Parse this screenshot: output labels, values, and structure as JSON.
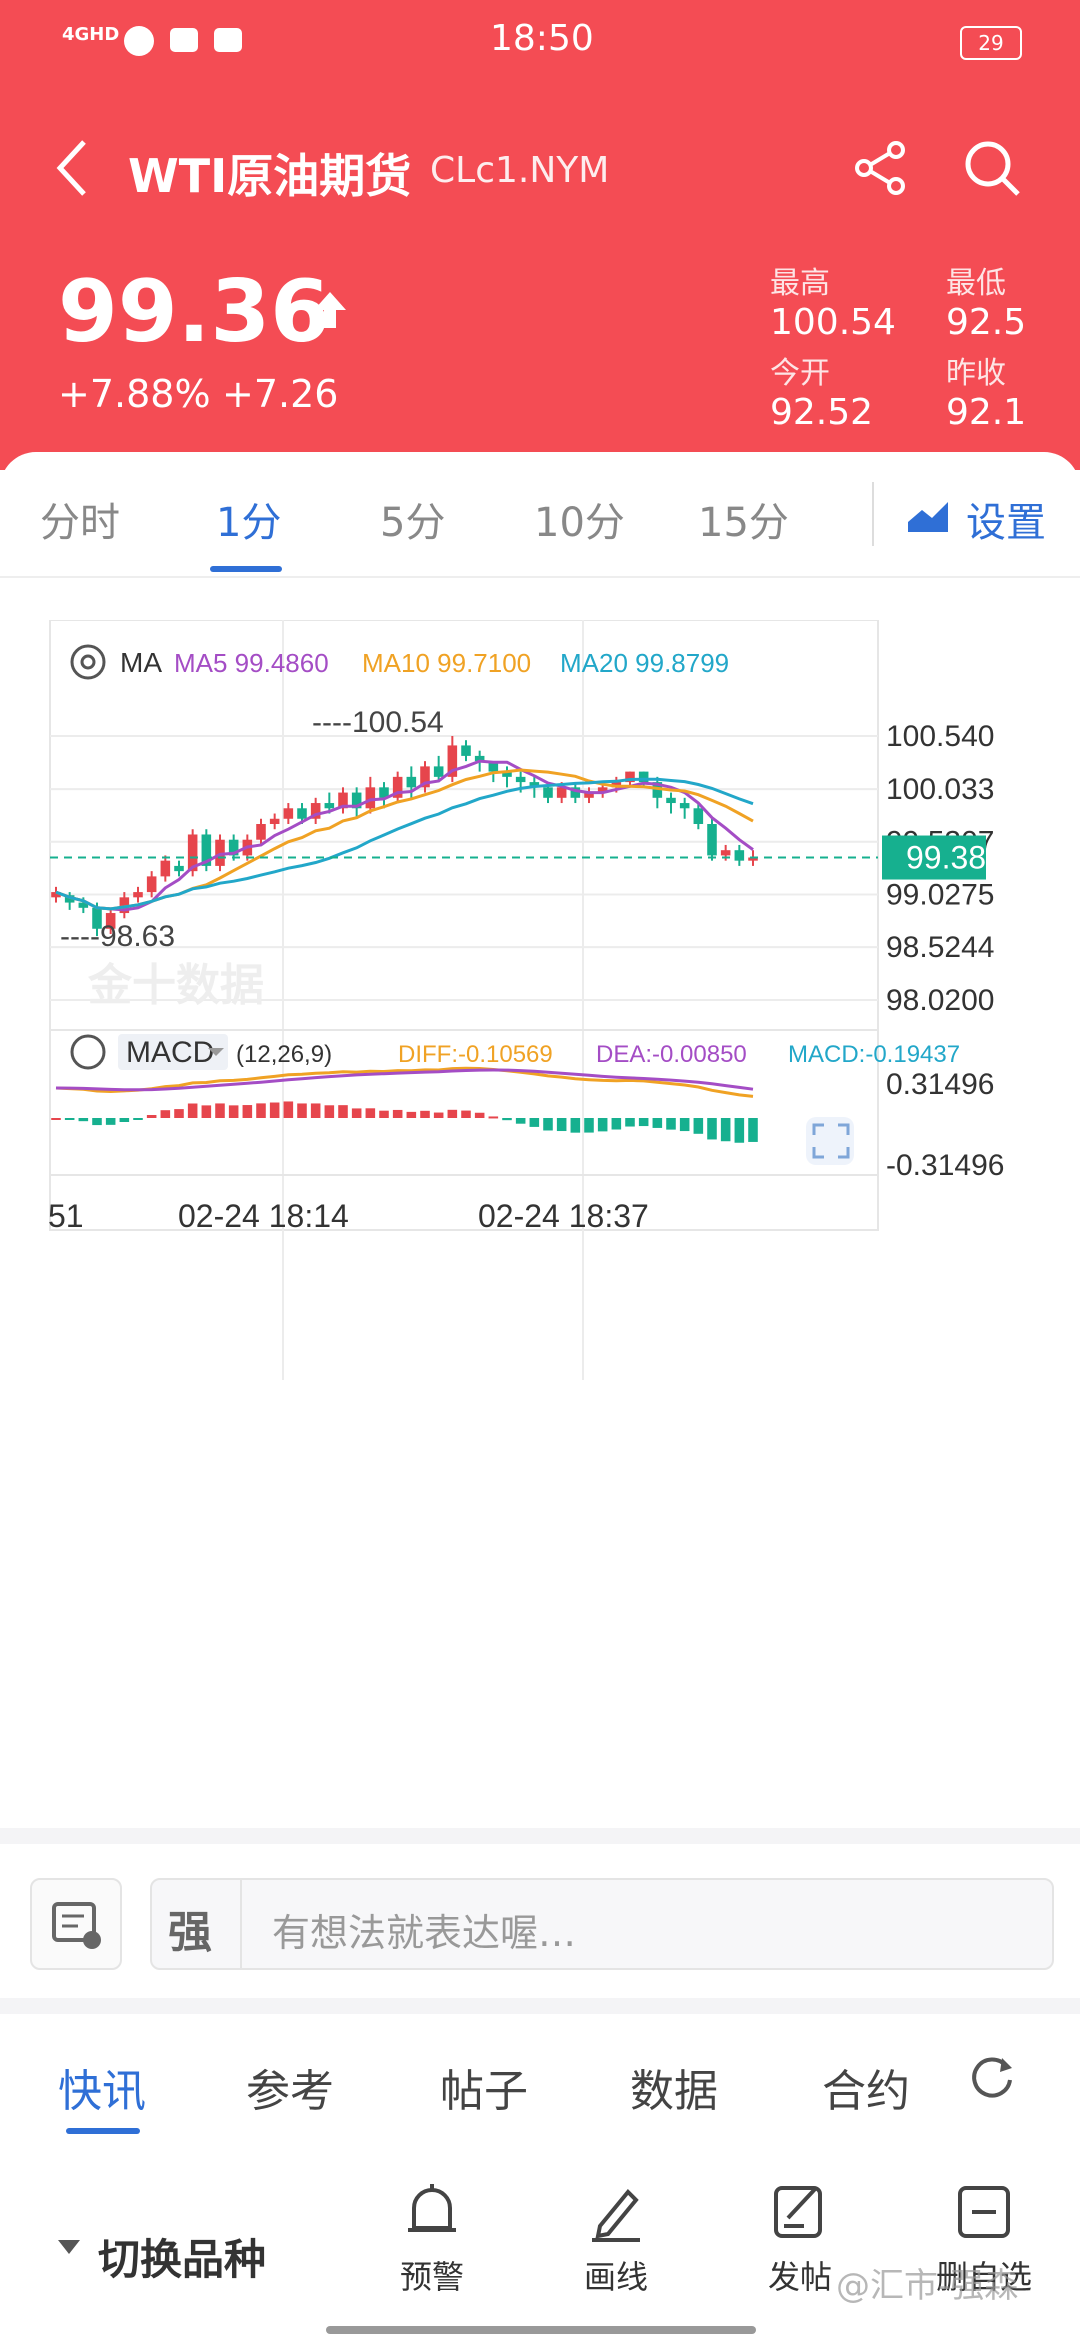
{
  "status_bar": {
    "network": "4GHD",
    "time": "18:50",
    "battery": "29"
  },
  "header": {
    "title": "WTI原油期货",
    "symbol": "CLc1.NYM"
  },
  "quote": {
    "price": "99.36",
    "change_pct": "+7.88%",
    "change_abs": "+7.26",
    "high_label": "最高",
    "high": "100.54",
    "low_label": "最低",
    "low": "92.5",
    "open_label": "今开",
    "open": "92.52",
    "prev_label": "昨收",
    "prev": "92.1"
  },
  "tabs": [
    "分时",
    "1分",
    "5分",
    "10分",
    "15分"
  ],
  "settings_label": "设置",
  "ma_legend": {
    "ma": "MA",
    "ma5": "MA5 99.4860",
    "ma10": "MA10 99.7100",
    "ma20": "MA20 99.8799"
  },
  "macd_legend": {
    "name": "MACD",
    "params": "(12,26,9)",
    "diff": "DIFF:-0.10569",
    "dea": "DEA:-0.00850",
    "macd": "MACD:-0.19437"
  },
  "watermark": "金十数据",
  "colors": {
    "header": "#f44c54",
    "up": "#e6454c",
    "down": "#16b08f",
    "ma5": "#a44dc5",
    "ma10": "#f0a224",
    "ma20": "#22a7c9",
    "accent": "#2f6fd6"
  },
  "chart_data": {
    "type": "candlestick",
    "yticks": [
      "100.540",
      "100.033",
      "99.5307",
      "99.0275",
      "98.5244",
      "98.0200"
    ],
    "ylim": [
      98.02,
      100.54
    ],
    "high_mark": "100.54",
    "low_mark": "98.63",
    "last_price": "99.38",
    "xticks": [
      "51",
      "02-24 18:14",
      "02-24 18:37"
    ],
    "macd_yticks": [
      "0.31496",
      "-0.31496"
    ],
    "candles": [
      [
        99.0,
        99.05,
        98.95,
        99.1
      ],
      [
        99.02,
        98.95,
        98.88,
        99.05
      ],
      [
        98.95,
        98.9,
        98.85,
        99.0
      ],
      [
        98.9,
        98.7,
        98.63,
        98.95
      ],
      [
        98.7,
        98.85,
        98.65,
        98.9
      ],
      [
        98.85,
        99.0,
        98.8,
        99.05
      ],
      [
        99.0,
        99.05,
        98.95,
        99.1
      ],
      [
        99.05,
        99.2,
        99.0,
        99.25
      ],
      [
        99.2,
        99.35,
        99.15,
        99.4
      ],
      [
        99.3,
        99.25,
        99.2,
        99.35
      ],
      [
        99.25,
        99.6,
        99.2,
        99.65
      ],
      [
        99.6,
        99.3,
        99.25,
        99.65
      ],
      [
        99.3,
        99.55,
        99.25,
        99.6
      ],
      [
        99.55,
        99.4,
        99.35,
        99.6
      ],
      [
        99.4,
        99.55,
        99.35,
        99.6
      ],
      [
        99.55,
        99.7,
        99.5,
        99.75
      ],
      [
        99.7,
        99.75,
        99.65,
        99.8
      ],
      [
        99.75,
        99.85,
        99.7,
        99.9
      ],
      [
        99.85,
        99.75,
        99.7,
        99.9
      ],
      [
        99.75,
        99.9,
        99.7,
        99.95
      ],
      [
        99.9,
        99.85,
        99.8,
        100.0
      ],
      [
        99.85,
        100.0,
        99.8,
        100.05
      ],
      [
        100.0,
        99.85,
        99.75,
        100.05
      ],
      [
        99.85,
        100.05,
        99.8,
        100.15
      ],
      [
        100.05,
        99.95,
        99.85,
        100.1
      ],
      [
        99.95,
        100.15,
        99.9,
        100.2
      ],
      [
        100.15,
        100.05,
        99.95,
        100.25
      ],
      [
        100.05,
        100.25,
        100.0,
        100.3
      ],
      [
        100.25,
        100.15,
        100.1,
        100.35
      ],
      [
        100.15,
        100.45,
        100.1,
        100.54
      ],
      [
        100.45,
        100.35,
        100.3,
        100.5
      ],
      [
        100.35,
        100.3,
        100.2,
        100.4
      ],
      [
        100.3,
        100.2,
        100.1,
        100.3
      ],
      [
        100.2,
        100.15,
        100.05,
        100.25
      ],
      [
        100.15,
        100.1,
        100.0,
        100.2
      ],
      [
        100.1,
        100.05,
        99.95,
        100.15
      ],
      [
        100.05,
        99.95,
        99.9,
        100.1
      ],
      [
        99.95,
        100.05,
        99.9,
        100.1
      ],
      [
        100.05,
        99.95,
        99.9,
        100.1
      ],
      [
        99.95,
        100.0,
        99.9,
        100.05
      ],
      [
        100.0,
        100.05,
        99.95,
        100.1
      ],
      [
        100.05,
        100.1,
        100.0,
        100.15
      ],
      [
        100.1,
        100.2,
        100.05,
        100.2
      ],
      [
        100.2,
        100.1,
        100.05,
        100.2
      ],
      [
        100.1,
        99.95,
        99.85,
        100.15
      ],
      [
        99.95,
        99.9,
        99.8,
        100.0
      ],
      [
        99.9,
        99.85,
        99.75,
        99.95
      ],
      [
        99.85,
        99.7,
        99.65,
        99.9
      ],
      [
        99.7,
        99.4,
        99.35,
        99.75
      ],
      [
        99.4,
        99.45,
        99.35,
        99.5
      ],
      [
        99.45,
        99.35,
        99.3,
        99.5
      ],
      [
        99.35,
        99.38,
        99.3,
        99.45
      ]
    ]
  },
  "comment": {
    "placeholder": "有想法就表达喔…"
  },
  "footer_tabs": [
    "快讯",
    "参考",
    "帖子",
    "数据",
    "合约"
  ],
  "bottom": {
    "switch": "切换品种",
    "alert": "预警",
    "draw": "画线",
    "post": "发帖",
    "watchlist": "删自选",
    "watermark": "@汇市-强森"
  }
}
